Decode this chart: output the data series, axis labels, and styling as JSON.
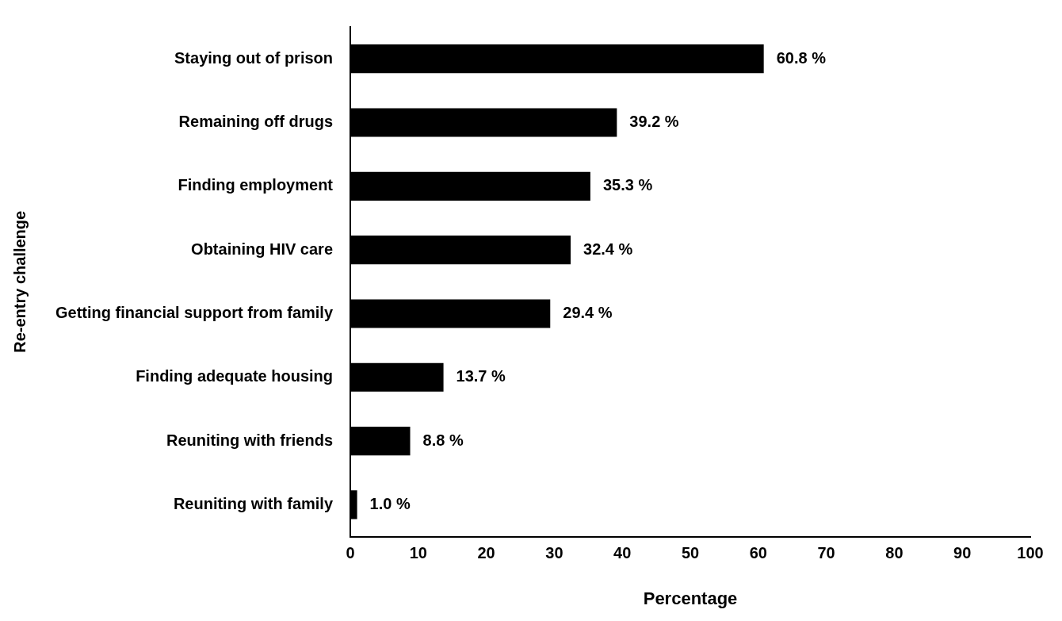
{
  "chart_data": {
    "type": "bar",
    "orientation": "horizontal",
    "xlabel": "Percentage",
    "ylabel": "Re-entry challenge",
    "categories": [
      "Staying out of prison",
      "Remaining off drugs",
      "Finding employment",
      "Obtaining HIV care",
      "Getting financial support from family",
      "Finding adequate housing",
      "Reuniting with friends",
      "Reuniting with family"
    ],
    "values": [
      60.8,
      39.2,
      35.3,
      32.4,
      29.4,
      13.7,
      8.8,
      1.0
    ],
    "value_labels": [
      "60.8 %",
      "39.2 %",
      "35.3 %",
      "32.4 %",
      "29.4 %",
      "13.7 %",
      "8.8 %",
      "1.0 %"
    ],
    "color": "#000000",
    "xlim": [
      0,
      100
    ],
    "xticks": [
      0,
      10,
      20,
      30,
      40,
      50,
      60,
      70,
      80,
      90,
      100
    ],
    "grid": false,
    "legend": false
  }
}
